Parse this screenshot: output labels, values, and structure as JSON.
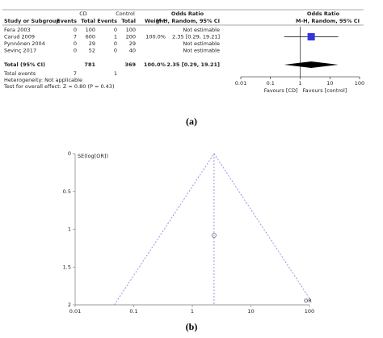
{
  "chart_data": [
    {
      "type": "forest",
      "group_headers": [
        "CD",
        "Control",
        "Odds Ratio",
        "Odds Ratio"
      ],
      "columns": [
        "Study or Subgroup",
        "Events",
        "Total",
        "Events",
        "Total",
        "Weight",
        "M-H, Random, 95% CI",
        "M-H, Random, 95% CI"
      ],
      "rows": [
        {
          "study": "Fera 2003",
          "cd_events": 0,
          "cd_total": 100,
          "control_events": 0,
          "control_total": 100,
          "ci_label": "Not estimable"
        },
        {
          "study": "Carud 2009",
          "cd_events": 7,
          "cd_total": 600,
          "control_events": 1,
          "control_total": 200,
          "weight": "100.0%",
          "ci_label": "2.35 [0.29, 19.21]",
          "or": 2.35,
          "ci_low": 0.29,
          "ci_high": 19.21
        },
        {
          "study": "Pynnönen 2004",
          "cd_events": 0,
          "cd_total": 29,
          "control_events": 0,
          "control_total": 29,
          "ci_label": "Not estimable"
        },
        {
          "study": "Sevinç 2017",
          "cd_events": 0,
          "cd_total": 52,
          "control_events": 0,
          "control_total": 40,
          "ci_label": "Not estimable"
        }
      ],
      "total": {
        "study": "Total (95% CI)",
        "cd_total": 781,
        "control_total": 369,
        "weight": "100.0%",
        "ci_label": "2.35 [0.29, 19.21]",
        "or": 2.35,
        "ci_low": 0.29,
        "ci_high": 19.21
      },
      "total_events": {
        "label": "Total events",
        "cd": 7,
        "control": 1
      },
      "notes": [
        "Heterogeneity: Not applicable",
        "Test for overall effect: Z = 0.80 (P = 0.43)"
      ],
      "xlim": [
        0.01,
        100
      ],
      "xticks": [
        0.01,
        0.1,
        1,
        10,
        100
      ],
      "log_x": true,
      "favours": [
        "Favours [CD]",
        "Favours [control]"
      ],
      "square_color": "#3333dd",
      "caption": "(a)"
    },
    {
      "type": "funnel",
      "x": [
        2.35
      ],
      "y": [
        1.08
      ],
      "pooled": 2.35,
      "xlim": [
        0.01,
        100
      ],
      "xticks": [
        0.01,
        0.1,
        1,
        10,
        100
      ],
      "log_x": true,
      "ylim": [
        2,
        0
      ],
      "yticks": [
        0,
        0.5,
        1,
        1.5,
        2
      ],
      "ylabel": "SE(log[OR])",
      "xlabel": "OR",
      "line_color": "#8a8ae0",
      "caption": "(b)"
    }
  ]
}
